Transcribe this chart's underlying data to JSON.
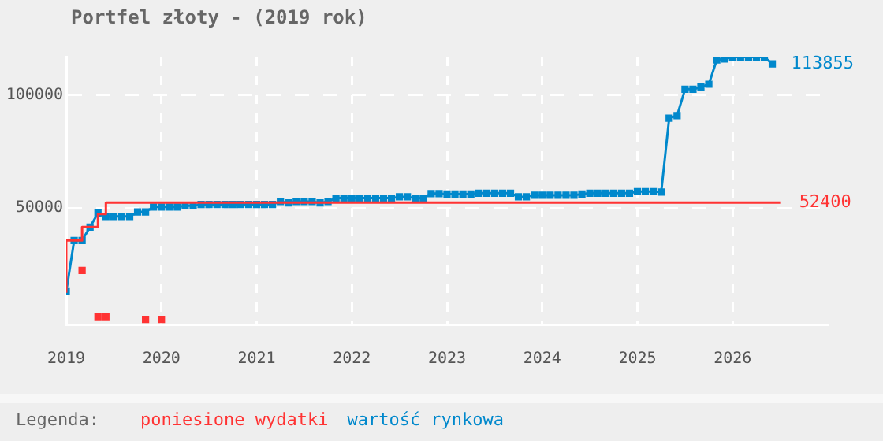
{
  "chart_data": {
    "type": "line",
    "title": "Portfel złoty - (2019 rok)",
    "legend_title": "Legenda:",
    "legend": "bottom left",
    "grid": true,
    "xlim": [
      "2019-01",
      "2027-01"
    ],
    "xticks": [
      "2019",
      "2020",
      "2021",
      "2022",
      "2023",
      "2024",
      "2025",
      "2026"
    ],
    "ylim": [
      -1500,
      117000
    ],
    "yticks": [
      50000,
      100000
    ],
    "series": [
      {
        "name": "poniesione wydatki",
        "type": "step",
        "color": "#ff3333",
        "marker": "none",
        "x": [
          "2019-01",
          "2019-03",
          "2019-05",
          "2019-06",
          "2019-12",
          "2026-07"
        ],
        "values": [
          12500,
          35700,
          41600,
          47400,
          52400,
          52400
        ]
      },
      {
        "type": "scatter",
        "color": "#ff3333",
        "marker": "square",
        "x": [
          "2019-03",
          "2019-05",
          "2019-06",
          "2019-11",
          "2020-01"
        ],
        "values": [
          22400,
          1900,
          1900,
          700,
          700
        ]
      },
      {
        "name": "wartość rynkowa",
        "color": "#0088cc",
        "marker": "square",
        "x": [
          "2019-01",
          "2019-02",
          "2019-03",
          "2019-04",
          "2019-05",
          "2019-06",
          "2019-07",
          "2019-08",
          "2019-09",
          "2019-10",
          "2019-11",
          "2019-12",
          "2020-01",
          "2020-02",
          "2020-03",
          "2020-04",
          "2020-05",
          "2020-06",
          "2020-07",
          "2020-08",
          "2020-09",
          "2020-10",
          "2020-11",
          "2020-12",
          "2021-01",
          "2021-02",
          "2021-03",
          "2021-04",
          "2021-05",
          "2021-06",
          "2021-07",
          "2021-08",
          "2021-09",
          "2021-10",
          "2021-11",
          "2021-12",
          "2022-01",
          "2022-02",
          "2022-03",
          "2022-04",
          "2022-05",
          "2022-06",
          "2022-07",
          "2022-08",
          "2022-09",
          "2022-10",
          "2022-11",
          "2022-12",
          "2023-01",
          "2023-02",
          "2023-03",
          "2023-04",
          "2023-05",
          "2023-06",
          "2023-07",
          "2023-08",
          "2023-09",
          "2023-10",
          "2023-11",
          "2023-12",
          "2024-01",
          "2024-02",
          "2024-03",
          "2024-04",
          "2024-05",
          "2024-06",
          "2024-07",
          "2024-08",
          "2024-09",
          "2024-10",
          "2024-11",
          "2024-12",
          "2025-01",
          "2025-02",
          "2025-03",
          "2025-04",
          "2025-05",
          "2025-06",
          "2025-07",
          "2025-08",
          "2025-09",
          "2025-10",
          "2025-11",
          "2025-12",
          "2026-01",
          "2026-02",
          "2026-03",
          "2026-04",
          "2026-05",
          "2026-06"
        ],
        "values": [
          13000,
          35700,
          35700,
          41600,
          47800,
          46300,
          46300,
          46300,
          46300,
          48300,
          48300,
          50500,
          50500,
          50500,
          50500,
          51000,
          51000,
          51600,
          51600,
          51600,
          51600,
          51600,
          51600,
          51600,
          51600,
          51600,
          51600,
          52900,
          52300,
          52900,
          52900,
          52900,
          52300,
          52900,
          54400,
          54400,
          54400,
          54400,
          54400,
          54400,
          54400,
          54400,
          55000,
          55000,
          54400,
          54400,
          56400,
          56400,
          56200,
          56200,
          56200,
          56200,
          56600,
          56600,
          56600,
          56600,
          56600,
          55000,
          55000,
          55700,
          55700,
          55700,
          55700,
          55700,
          55700,
          56200,
          56600,
          56600,
          56600,
          56600,
          56600,
          56600,
          57300,
          57300,
          57300,
          57100,
          89800,
          90900,
          102600,
          102600,
          103500,
          104800,
          115600,
          116000,
          116800,
          116800,
          116800,
          116800,
          116800,
          113855
        ]
      }
    ],
    "annotations": [
      {
        "text": "113855",
        "x": "2026-06",
        "y": 113855
      },
      {
        "text": "52400",
        "x": "2026-07",
        "y": 52400
      }
    ]
  }
}
